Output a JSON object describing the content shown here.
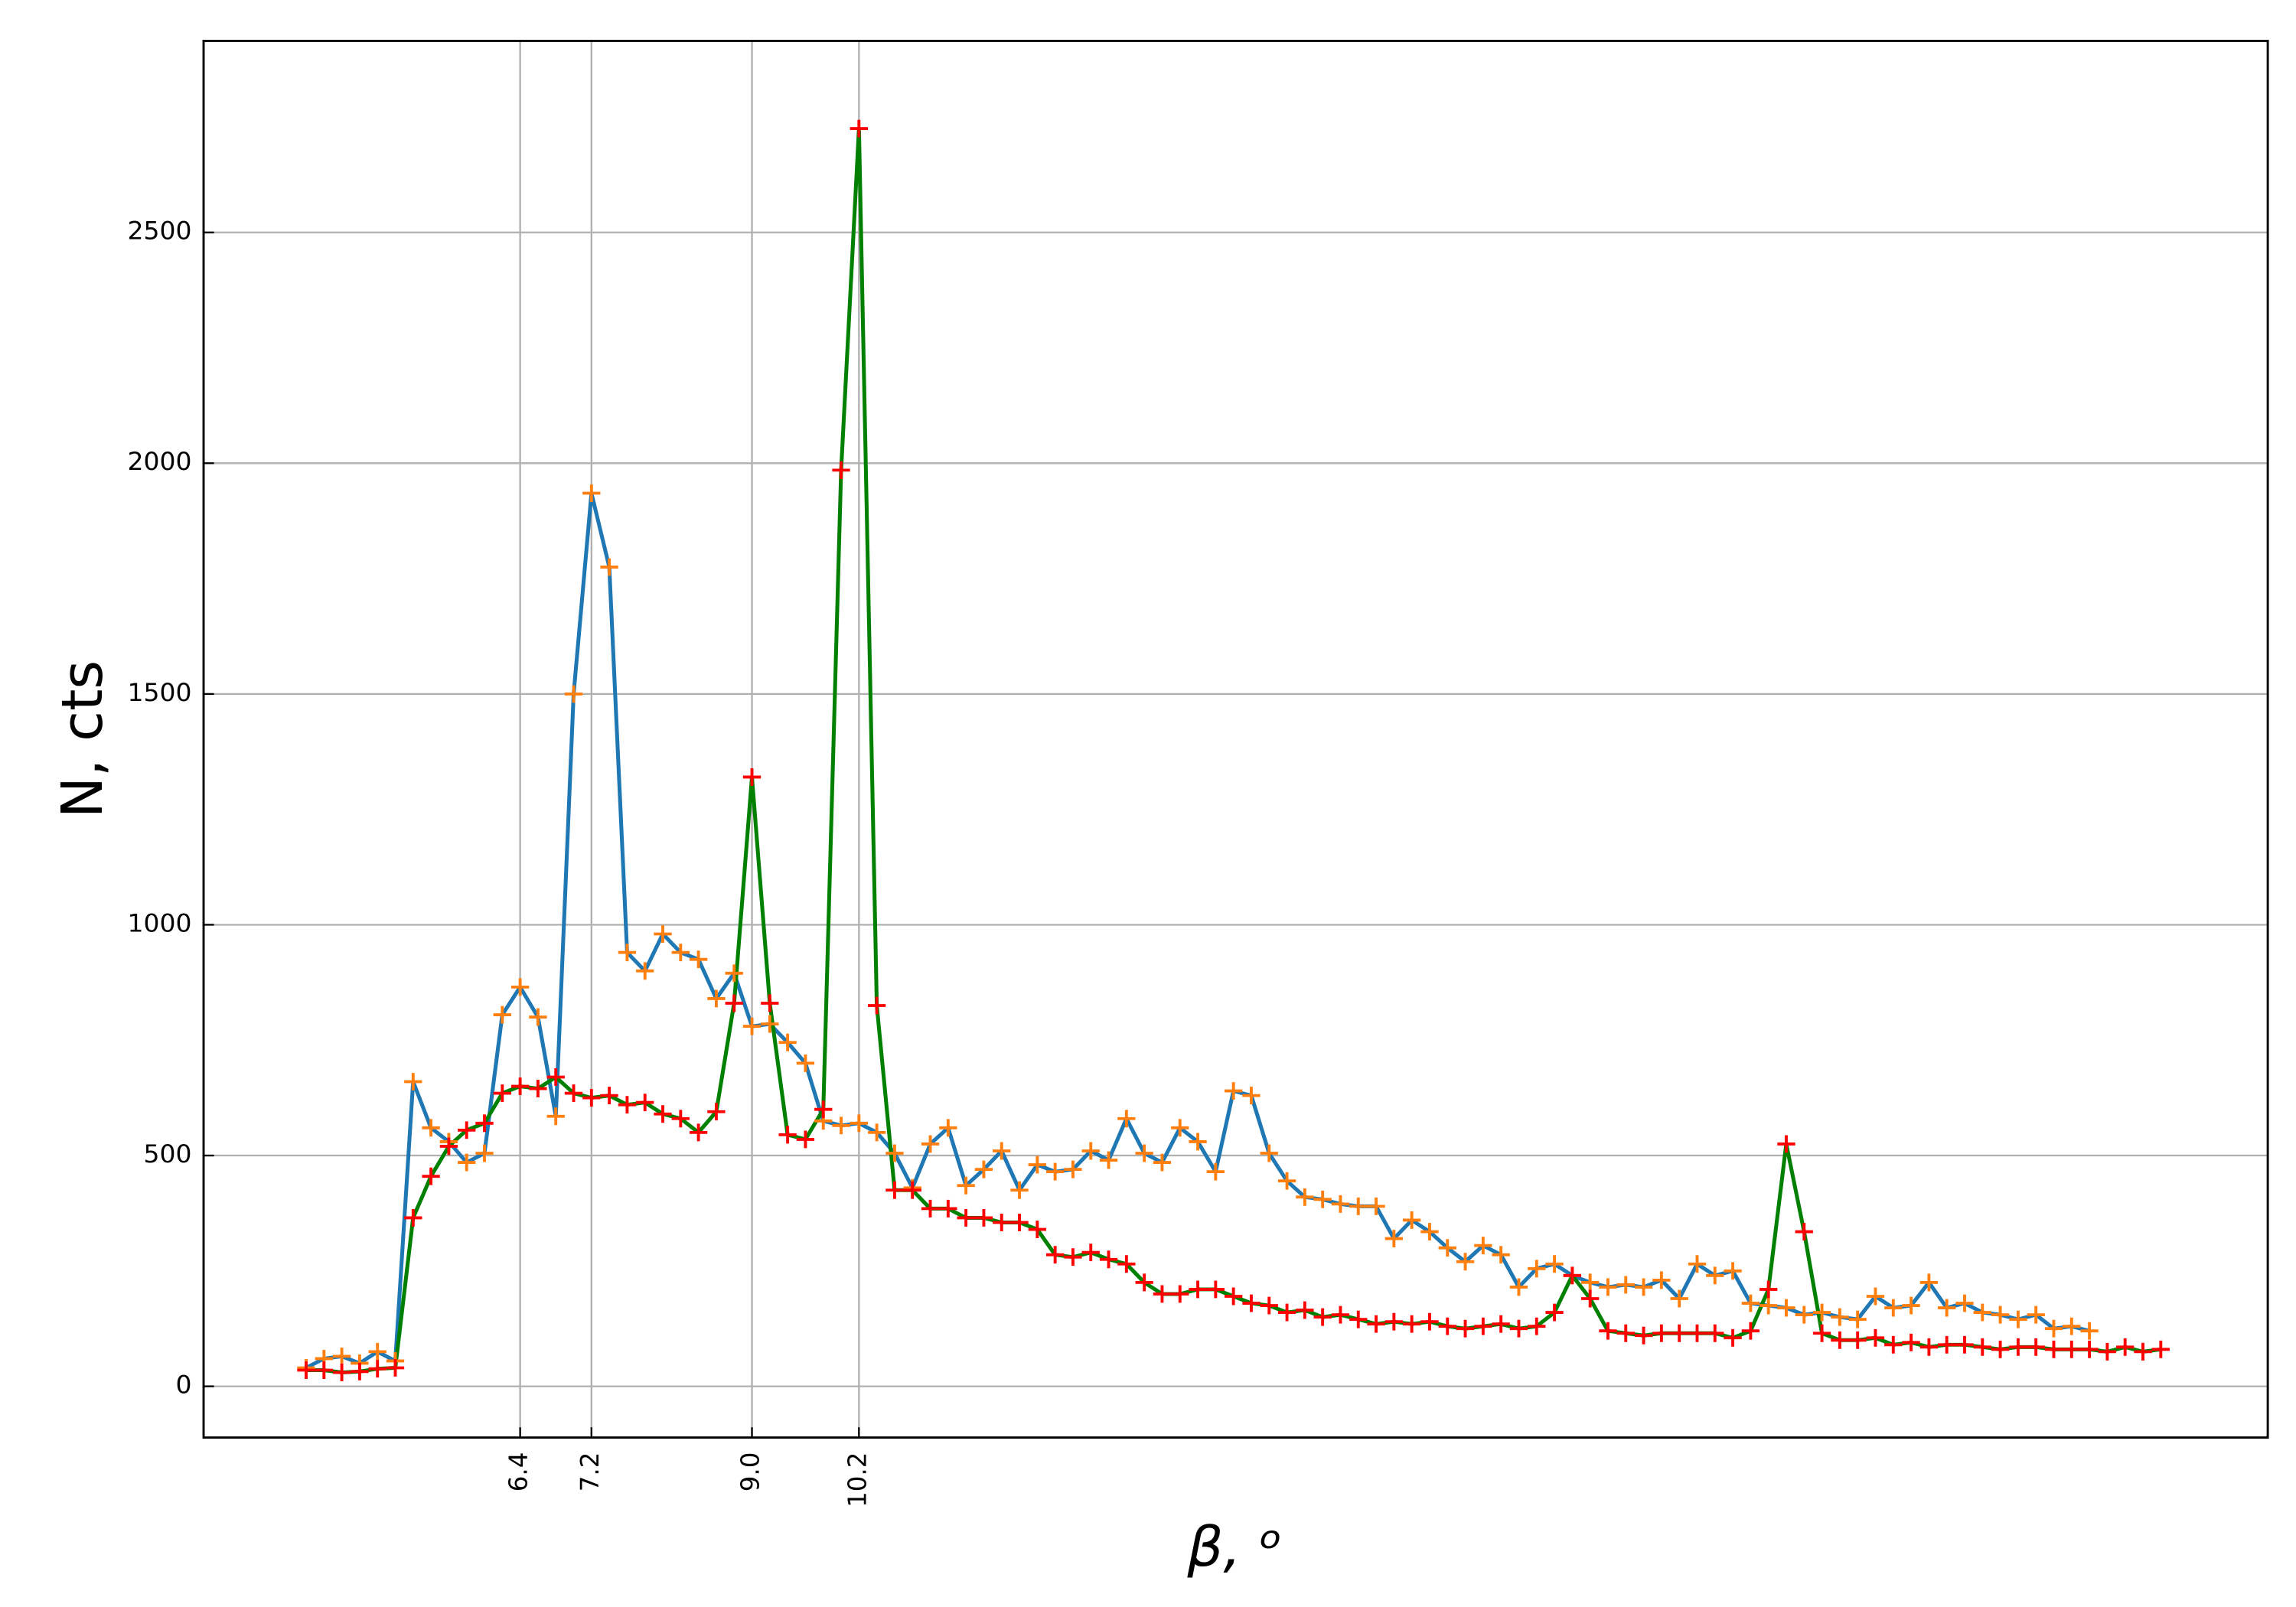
{
  "chart_data": {
    "type": "line",
    "x_label": "β, ᵒ",
    "y_label": "N, cts",
    "xlim": [
      2.85,
      26.0
    ],
    "ylim": [
      -111,
      2915
    ],
    "xticks": [
      6.4,
      7.2,
      {
        "value": 9,
        "label": "9.0"
      },
      10.2
    ],
    "yticks": [
      0,
      500,
      1000,
      1500,
      2000,
      2500
    ],
    "grid": true,
    "series": [
      {
        "color": "#1f77b4",
        "marker_color": "#ff7f0e",
        "x": [
          4.0,
          4.2,
          4.4,
          4.6,
          4.8,
          5.0,
          5.2,
          5.4,
          5.6,
          5.8,
          6.0,
          6.2,
          6.4,
          6.6,
          6.8,
          7.0,
          7.2,
          7.4,
          7.6,
          7.8,
          8.0,
          8.2,
          8.4,
          8.6,
          8.8,
          9.0,
          9.2,
          9.4,
          9.6,
          9.8,
          10.0,
          10.2,
          10.4,
          10.6,
          10.8,
          11.0,
          11.2,
          11.4,
          11.6,
          11.8,
          12.0,
          12.2,
          12.4,
          12.6,
          12.8,
          13.0,
          13.2,
          13.4,
          13.6,
          13.8,
          14.0,
          14.2,
          14.4,
          14.6,
          14.8,
          15.0,
          15.2,
          15.4,
          15.6,
          15.8,
          16.0,
          16.2,
          16.4,
          16.6,
          16.8,
          17.0,
          17.2,
          17.4,
          17.6,
          17.8,
          18.0,
          18.2,
          18.4,
          18.6,
          18.8,
          19.0,
          19.2,
          19.4,
          19.6,
          19.8,
          20.0,
          20.2,
          20.4,
          20.6,
          20.8,
          21.0,
          21.2,
          21.4,
          21.6,
          21.8,
          22.0,
          22.2,
          22.4,
          22.6,
          22.8,
          23.0,
          23.2,
          23.4,
          23.6,
          23.8,
          24.0
        ],
        "values": [
          40,
          60,
          65,
          50,
          75,
          55,
          660,
          560,
          530,
          485,
          505,
          805,
          865,
          800,
          585,
          1500,
          1935,
          1775,
          940,
          900,
          980,
          940,
          925,
          840,
          895,
          780,
          785,
          745,
          700,
          575,
          565,
          570,
          550,
          505,
          430,
          525,
          560,
          435,
          470,
          510,
          425,
          480,
          465,
          470,
          510,
          490,
          580,
          505,
          485,
          560,
          530,
          465,
          640,
          630,
          505,
          445,
          410,
          405,
          395,
          390,
          390,
          320,
          360,
          335,
          300,
          270,
          305,
          285,
          215,
          255,
          265,
          240,
          225,
          215,
          220,
          215,
          230,
          190,
          265,
          240,
          250,
          180,
          175,
          170,
          155,
          160,
          150,
          145,
          195,
          170,
          175,
          225,
          170,
          180,
          160,
          155,
          145,
          155,
          125,
          130,
          120
        ]
      },
      {
        "color": "#008000",
        "marker_color": "#ff0000",
        "x": [
          4.0,
          4.2,
          4.4,
          4.6,
          4.8,
          5.0,
          5.2,
          5.4,
          5.6,
          5.8,
          6.0,
          6.2,
          6.4,
          6.6,
          6.8,
          7.0,
          7.2,
          7.4,
          7.6,
          7.8,
          8.0,
          8.2,
          8.4,
          8.6,
          8.8,
          9.0,
          9.2,
          9.4,
          9.6,
          9.8,
          10.0,
          10.2,
          10.4,
          10.6,
          10.8,
          11.0,
          11.2,
          11.4,
          11.6,
          11.8,
          12.0,
          12.2,
          12.4,
          12.6,
          12.8,
          13.0,
          13.2,
          13.4,
          13.6,
          13.8,
          14.0,
          14.2,
          14.4,
          14.6,
          14.8,
          15.0,
          15.2,
          15.4,
          15.6,
          15.8,
          16.0,
          16.2,
          16.4,
          16.6,
          16.8,
          17.0,
          17.2,
          17.4,
          17.6,
          17.8,
          18.0,
          18.2,
          18.4,
          18.6,
          18.8,
          19.0,
          19.2,
          19.4,
          19.6,
          19.8,
          20.0,
          20.2,
          20.4,
          20.6,
          20.8,
          21.0,
          21.2,
          21.4,
          21.6,
          21.8,
          22.0,
          22.2,
          22.4,
          22.6,
          22.8,
          23.0,
          23.2,
          23.4,
          23.6,
          23.8,
          24.0,
          24.2,
          24.4,
          24.6,
          24.8
        ],
        "values": [
          35,
          35,
          30,
          32,
          38,
          40,
          365,
          455,
          520,
          555,
          570,
          635,
          650,
          645,
          670,
          635,
          625,
          630,
          610,
          615,
          590,
          580,
          550,
          595,
          830,
          1320,
          830,
          545,
          535,
          600,
          1985,
          2725,
          825,
          425,
          425,
          385,
          385,
          365,
          365,
          355,
          355,
          340,
          285,
          280,
          290,
          275,
          265,
          225,
          200,
          200,
          210,
          210,
          195,
          180,
          175,
          160,
          165,
          150,
          155,
          145,
          135,
          140,
          135,
          140,
          130,
          125,
          130,
          135,
          125,
          130,
          160,
          240,
          190,
          120,
          115,
          110,
          115,
          115,
          115,
          115,
          105,
          120,
          210,
          525,
          335,
          115,
          100,
          100,
          105,
          90,
          95,
          85,
          90,
          90,
          85,
          80,
          85,
          85,
          80,
          80,
          80,
          75,
          85,
          75,
          80
        ]
      }
    ]
  }
}
